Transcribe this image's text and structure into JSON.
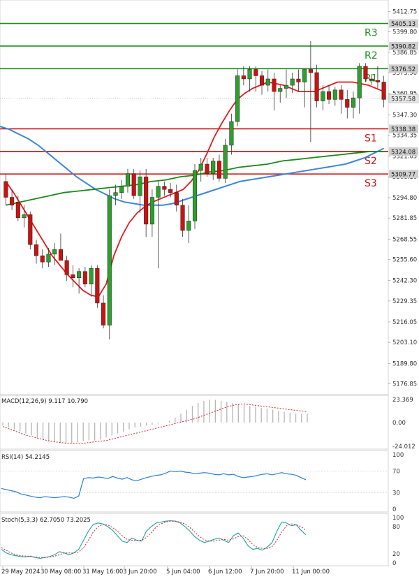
{
  "colors": {
    "up": "#2ca02c",
    "down": "#cc1111",
    "resistance": "#1e8c1e",
    "support": "#cc1111",
    "ma_fast": "#e31a1c",
    "ma_mid": "#3a86d8",
    "ma_slow": "#1a8a1a",
    "label_bg": "#cfcfcf",
    "grid": "#e6e6e6"
  },
  "chart_data": [
    {
      "type": "candlestick",
      "ylim": [
        5170,
        5420
      ],
      "y_ticks": [
        "5412.75",
        "5399.80",
        "5386.85",
        "5373.90",
        "5360.95",
        "5347.30",
        "5334.35",
        "5321.05",
        "5308.10",
        "5294.80",
        "5281.85",
        "5268.55",
        "5255.60",
        "5242.30",
        "5229.35",
        "5216.05",
        "5203.10",
        "5189.80",
        "5176.85"
      ],
      "x_tick_labels": [
        "29 May 2024",
        "30 May 08:00",
        "31 May 16:00",
        "3 Jun 20:00",
        "5 Jun 04:00",
        "6 Jun 12:00",
        "7 Jun 20:00",
        "11 Jun 00:00"
      ],
      "current_price_label": "5357.58",
      "current_price": 5357.58,
      "levels": [
        {
          "name": "R3",
          "value": 5405.13,
          "label": "5405.13",
          "kind": "resistance"
        },
        {
          "name": "R2",
          "value": 5390.82,
          "label": "5390.82",
          "kind": "resistance"
        },
        {
          "name": "R1",
          "value": 5376.52,
          "label": "5376.52",
          "kind": "resistance"
        },
        {
          "name": "S1",
          "value": 5338.38,
          "label": "5338.38",
          "kind": "support"
        },
        {
          "name": "S2",
          "value": 5324.08,
          "label": "5324.08",
          "kind": "support"
        },
        {
          "name": "S3",
          "value": 5309.77,
          "label": "5309.77",
          "kind": "support"
        }
      ],
      "candles": [
        [
          5305,
          5310,
          5290,
          5295
        ],
        [
          5295,
          5300,
          5287,
          5290
        ],
        [
          5292,
          5296,
          5280,
          5282
        ],
        [
          5282,
          5290,
          5276,
          5284
        ],
        [
          5284,
          5286,
          5262,
          5265
        ],
        [
          5265,
          5268,
          5253,
          5258
        ],
        [
          5258,
          5262,
          5250,
          5254
        ],
        [
          5254,
          5263,
          5251,
          5259
        ],
        [
          5259,
          5266,
          5252,
          5262
        ],
        [
          5262,
          5272,
          5255,
          5255
        ],
        [
          5255,
          5258,
          5242,
          5246
        ],
        [
          5246,
          5252,
          5238,
          5244
        ],
        [
          5244,
          5250,
          5234,
          5248
        ],
        [
          5248,
          5251,
          5238,
          5240
        ],
        [
          5240,
          5252,
          5232,
          5250
        ],
        [
          5250,
          5252,
          5225,
          5228
        ],
        [
          5228,
          5233,
          5212,
          5214
        ],
        [
          5214,
          5300,
          5205,
          5296
        ],
        [
          5296,
          5303,
          5290,
          5298
        ],
        [
          5298,
          5306,
          5294,
          5302
        ],
        [
          5302,
          5313,
          5298,
          5310
        ],
        [
          5310,
          5313,
          5294,
          5296
        ],
        [
          5296,
          5312,
          5285,
          5308
        ],
        [
          5308,
          5313,
          5270,
          5278
        ],
        [
          5278,
          5300,
          5270,
          5295
        ],
        [
          5295,
          5305,
          5250,
          5302
        ],
        [
          5302,
          5305,
          5296,
          5300
        ],
        [
          5300,
          5304,
          5295,
          5298
        ],
        [
          5298,
          5303,
          5286,
          5290
        ],
        [
          5290,
          5294,
          5270,
          5274
        ],
        [
          5274,
          5290,
          5266,
          5280
        ],
        [
          5280,
          5316,
          5275,
          5312
        ],
        [
          5312,
          5320,
          5305,
          5316
        ],
        [
          5316,
          5320,
          5308,
          5310
        ],
        [
          5310,
          5320,
          5306,
          5318
        ],
        [
          5318,
          5322,
          5305,
          5307
        ],
        [
          5307,
          5332,
          5304,
          5328
        ],
        [
          5328,
          5348,
          5322,
          5343
        ],
        [
          5343,
          5376,
          5340,
          5372
        ],
        [
          5372,
          5378,
          5366,
          5370
        ],
        [
          5370,
          5378,
          5362,
          5376
        ],
        [
          5376,
          5378,
          5362,
          5372
        ],
        [
          5372,
          5375,
          5360,
          5366
        ],
        [
          5366,
          5376,
          5362,
          5370
        ],
        [
          5370,
          5374,
          5350,
          5362
        ],
        [
          5362,
          5366,
          5355,
          5364
        ],
        [
          5364,
          5376,
          5358,
          5366
        ],
        [
          5366,
          5374,
          5361,
          5370
        ],
        [
          5370,
          5376,
          5362,
          5368
        ],
        [
          5368,
          5376,
          5352,
          5376
        ],
        [
          5376,
          5394,
          5330,
          5374
        ],
        [
          5374,
          5379,
          5352,
          5356
        ],
        [
          5356,
          5366,
          5350,
          5362
        ],
        [
          5362,
          5366,
          5354,
          5357
        ],
        [
          5357,
          5365,
          5353,
          5363
        ],
        [
          5363,
          5366,
          5348,
          5357
        ],
        [
          5357,
          5363,
          5345,
          5352
        ],
        [
          5352,
          5362,
          5345,
          5358
        ],
        [
          5358,
          5380,
          5348,
          5378
        ],
        [
          5378,
          5380,
          5368,
          5370
        ],
        [
          5370,
          5373,
          5366,
          5369
        ],
        [
          5369,
          5378,
          5364,
          5368
        ],
        [
          5368,
          5372,
          5352,
          5357
        ]
      ],
      "ma_fast": [
        5305,
        5298,
        5290,
        5282,
        5274,
        5266,
        5258,
        5252,
        5246,
        5241,
        5236,
        5233,
        5232,
        5240,
        5258,
        5270,
        5279,
        5285,
        5289,
        5292,
        5294,
        5296,
        5298,
        5300,
        5305,
        5312,
        5322,
        5333,
        5342,
        5350,
        5357,
        5361,
        5364,
        5366,
        5368,
        5367,
        5366,
        5364,
        5362,
        5362,
        5362,
        5364,
        5366,
        5368,
        5368,
        5368,
        5367,
        5366,
        5364,
        5362
      ],
      "ma_mid": [
        5340,
        5338,
        5335,
        5332,
        5328,
        5323,
        5318,
        5313,
        5308,
        5304,
        5300,
        5297,
        5294,
        5292,
        5291,
        5290,
        5290,
        5290,
        5291,
        5293,
        5295,
        5297,
        5299,
        5301,
        5303,
        5305,
        5306,
        5307,
        5308,
        5309,
        5310,
        5311,
        5312,
        5313,
        5314,
        5315,
        5316,
        5318,
        5320,
        5323,
        5326
      ],
      "ma_slow": [
        5290,
        5292,
        5294,
        5296,
        5298,
        5299,
        5300,
        5301,
        5302,
        5303,
        5305,
        5306,
        5308,
        5309,
        5311,
        5312,
        5314,
        5315,
        5316,
        5318,
        5319,
        5320,
        5321,
        5322,
        5323,
        5324,
        5324
      ]
    },
    {
      "type": "bar",
      "title": "MACD(12,26,9) 9.117 10.790",
      "ylim": [
        -24.012,
        23.369
      ],
      "y_ticks": [
        "23.369",
        "0.00",
        "-24.012"
      ],
      "histogram": [
        -3,
        -5,
        -7,
        -9,
        -11,
        -13,
        -15,
        -17,
        -18,
        -19,
        -20,
        -21,
        -21,
        -20,
        -19,
        -18,
        -18,
        -17,
        -15,
        -13,
        -11,
        -9,
        -7,
        -5,
        -4,
        -3,
        -2,
        -1,
        0,
        2,
        5,
        9,
        13,
        17,
        20,
        22,
        23,
        23,
        22,
        21,
        20,
        19,
        18,
        17,
        16,
        15,
        14,
        13,
        12,
        11,
        10,
        9,
        9,
        9
      ],
      "signal": [
        -4,
        -7,
        -10,
        -13,
        -15,
        -17,
        -19,
        -20,
        -21,
        -21,
        -21,
        -20,
        -19,
        -18,
        -16,
        -14,
        -12,
        -10,
        -8,
        -6,
        -4,
        -2,
        0,
        2,
        4,
        7,
        10,
        13,
        16,
        18,
        19,
        18,
        17,
        16,
        15,
        14,
        13,
        12,
        11
      ]
    },
    {
      "type": "line",
      "title": "RSI(14) 54.2145",
      "ylim": [
        0,
        100
      ],
      "y_ticks": [
        "100",
        "70",
        "30",
        "0"
      ],
      "values": [
        38,
        36,
        34,
        32,
        28,
        26,
        24,
        22,
        21,
        23,
        22,
        21,
        22,
        23,
        22,
        20,
        24,
        56,
        58,
        57,
        59,
        58,
        56,
        60,
        57,
        55,
        58,
        54,
        52,
        55,
        58,
        60,
        62,
        63,
        66,
        70,
        69,
        70,
        68,
        67,
        65,
        66,
        67,
        66,
        64,
        63,
        65,
        63,
        64,
        60,
        58,
        59,
        60,
        62,
        64,
        65,
        63,
        65,
        67,
        65,
        64,
        62,
        58,
        54
      ]
    },
    {
      "type": "line",
      "title": "Stoch(5,3,3) 62.7050 73.2025",
      "ylim": [
        0,
        100
      ],
      "y_ticks": [
        "100",
        "80",
        "20",
        "0"
      ],
      "k": [
        30,
        22,
        18,
        16,
        14,
        13,
        15,
        12,
        10,
        12,
        14,
        18,
        25,
        22,
        18,
        22,
        30,
        50,
        70,
        85,
        88,
        86,
        80,
        72,
        60,
        48,
        45,
        55,
        50,
        48,
        70,
        80,
        88,
        90,
        92,
        93,
        92,
        88,
        80,
        70,
        58,
        50,
        45,
        48,
        52,
        55,
        50,
        45,
        60,
        66,
        55,
        38,
        30,
        32,
        28,
        35,
        45,
        70,
        90,
        88,
        82,
        84,
        72,
        62
      ],
      "d": [
        34,
        28,
        22,
        18,
        16,
        15,
        14,
        13,
        12,
        12,
        13,
        15,
        18,
        22,
        22,
        22,
        24,
        34,
        50,
        68,
        80,
        85,
        84,
        78,
        70,
        60,
        52,
        50,
        50,
        50,
        56,
        66,
        79,
        86,
        90,
        92,
        92,
        90,
        86,
        78,
        68,
        58,
        51,
        48,
        48,
        50,
        52,
        50,
        53,
        58,
        60,
        52,
        41,
        34,
        32,
        32,
        36,
        50,
        68,
        82,
        86,
        84,
        80,
        72
      ]
    }
  ]
}
